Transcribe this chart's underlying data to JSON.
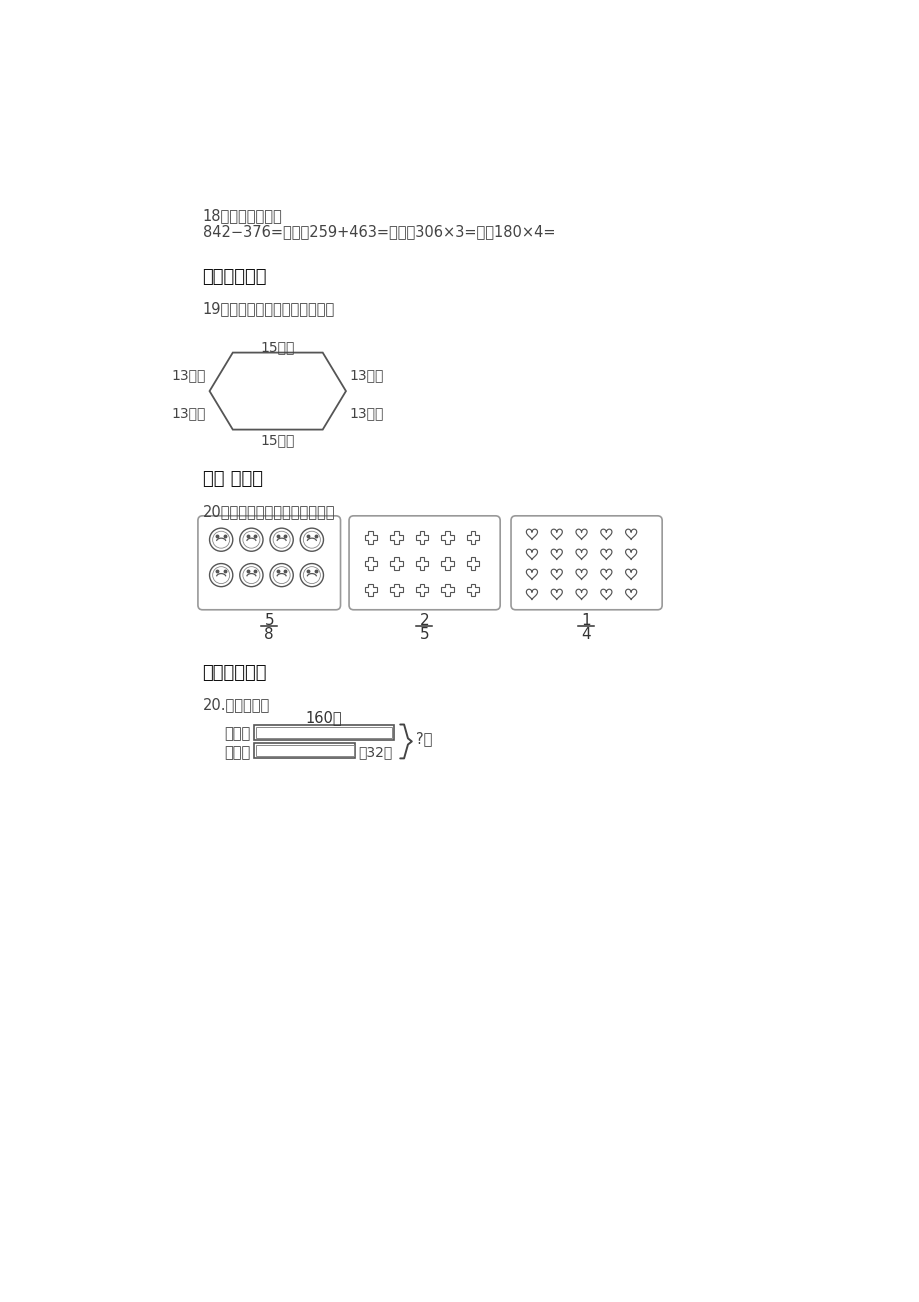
{
  "bg_color": "#ffffff",
  "text_color": "#444444",
  "section18_label": "18、用竖式计算。",
  "section18_expr": "842−376=　　　259+463=　　　306×3=　　180×4=",
  "section5_title": "五、图形计算",
  "section19_label": "19、计算如图所示图形的周长。",
  "hex_top": "15厘米",
  "hex_top_left": "13厘米",
  "hex_top_right": "13厘米",
  "hex_bot_left": "13厘米",
  "hex_bot_right": "13厘米",
  "hex_bottom": "15厘米",
  "section6_title": "六、 画一画",
  "section20a_label": "20、涂色表示各图下面的分数。",
  "frac1_num": "5",
  "frac1_den": "8",
  "frac2_num": "2",
  "frac2_den": "5",
  "frac3_num": "1",
  "frac3_den": "4",
  "section7_title": "七、看图列式",
  "section20b_label": "20.看图列式。",
  "bar_label_160": "160元",
  "bar_label_shangyi": "上衣：",
  "bar_label_kuzi": "裤子：",
  "bar_label_shao": "就32元",
  "bar_label_question": "?元"
}
